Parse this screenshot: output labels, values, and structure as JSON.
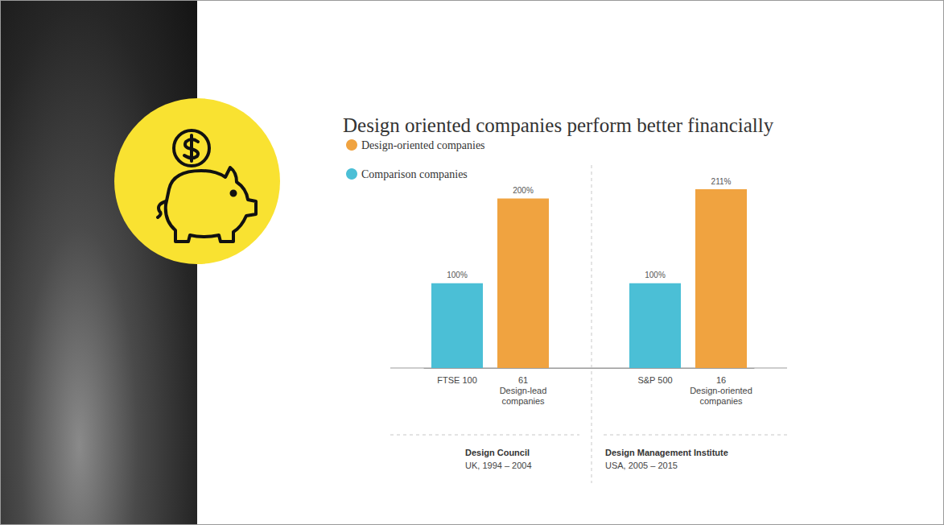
{
  "chart_data": {
    "type": "bar",
    "title": "Design oriented companies perform better financially",
    "categories": [
      "FTSE 100",
      "61\nDesign-lead\ncompanies",
      null,
      "S&P 500",
      "16\nDesign-oriented\ncompanies"
    ],
    "series": [
      {
        "name": "Design-oriented companies",
        "color": "#f0a340",
        "values": [
          null,
          200,
          null,
          null,
          211
        ],
        "value_labels": [
          null,
          "200%",
          null,
          null,
          "211%"
        ]
      },
      {
        "name": "Comparison companies",
        "color": "#4bbfd6",
        "values": [
          100,
          null,
          null,
          100,
          null
        ],
        "value_labels": [
          "100%",
          null,
          null,
          "100%",
          null
        ]
      }
    ],
    "ylim": [
      0,
      211
    ],
    "data_labels": true,
    "tick_labels": "x",
    "grid": false,
    "legend": "top-left",
    "annotations": [
      {
        "text": "Design Council",
        "detail": "UK, 1994 – 2004"
      },
      {
        "text": "Design Management Institute",
        "detail": "USA, 2005 – 2015"
      }
    ]
  }
}
